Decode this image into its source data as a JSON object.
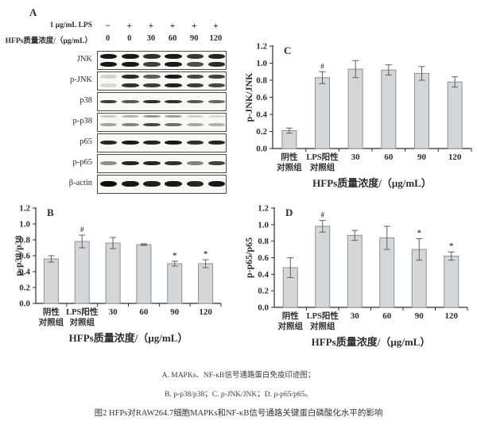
{
  "colors": {
    "bar_fill": "#d4d6d7",
    "bar_stroke": "#8f9294",
    "error_bar": "#5d6062",
    "axis": "#2e2e2e",
    "text": "#2e2e2e",
    "background": "#ffffff"
  },
  "panel_a": {
    "label": "A",
    "header_rows": [
      {
        "label": "1 μg/mL LPS",
        "values": [
          "−",
          "+",
          "+",
          "+",
          "+",
          "+"
        ]
      },
      {
        "label": "HFPs质量浓度/（μg/mL）",
        "values": [
          "0",
          "0",
          "30",
          "60",
          "90",
          "120"
        ]
      }
    ],
    "blot_rows": [
      {
        "label": "JNK",
        "bands": [
          {
            "y": 0.14,
            "h": 6,
            "alpha": [
              0.95,
              0.95,
              0.85,
              0.95,
              0.82,
              0.9
            ]
          },
          {
            "y": 0.56,
            "h": 6,
            "alpha": [
              0.95,
              0.95,
              0.78,
              0.95,
              0.72,
              0.88
            ]
          }
        ]
      },
      {
        "label": "p-JNK",
        "bands": [
          {
            "y": 0.14,
            "h": 5,
            "alpha": [
              0.16,
              0.88,
              0.66,
              0.95,
              0.76,
              0.78
            ]
          },
          {
            "y": 0.58,
            "h": 5,
            "alpha": [
              0.12,
              0.84,
              0.8,
              0.92,
              0.8,
              0.74
            ]
          }
        ]
      },
      {
        "label": "p38",
        "bands": [
          {
            "y": 0.38,
            "h": 4,
            "alpha": [
              0.8,
              0.68,
              0.85,
              0.85,
              0.68,
              0.62
            ]
          }
        ]
      },
      {
        "label": "p-p38",
        "bands": [
          {
            "y": 0.1,
            "h": 3,
            "alpha": [
              0.2,
              0.3,
              0.42,
              0.38,
              0.18,
              0.14
            ]
          },
          {
            "y": 0.48,
            "h": 4,
            "alpha": [
              0.35,
              0.5,
              0.75,
              0.58,
              0.34,
              0.3
            ]
          }
        ]
      },
      {
        "label": "p65",
        "bands": [
          {
            "y": 0.34,
            "h": 5,
            "alpha": [
              0.9,
              0.95,
              0.9,
              0.95,
              0.85,
              0.9
            ]
          }
        ]
      },
      {
        "label": "p-p65",
        "bands": [
          {
            "y": 0.34,
            "h": 5,
            "alpha": [
              0.45,
              0.9,
              0.9,
              0.85,
              0.5,
              0.78
            ]
          }
        ]
      },
      {
        "label": "β-actin",
        "bands": [
          {
            "y": 0.28,
            "h": 7,
            "alpha": [
              1,
              0.95,
              0.92,
              0.95,
              0.9,
              0.95
            ]
          }
        ]
      }
    ]
  },
  "chart_data": [
    {
      "type": "bar",
      "panel": "B",
      "title": "",
      "ylabel": "p-p38/p38",
      "xlabel": "HFPs质量浓度/（μg/mL）",
      "ylim": [
        0,
        1.2
      ],
      "ytick_step": 0.2,
      "grid": false,
      "legend": "none",
      "categories": [
        "阴性\n对照组",
        "LPS阳性\n对照组",
        "30",
        "60",
        "90",
        "120"
      ],
      "values": [
        0.56,
        0.78,
        0.76,
        0.74,
        0.5,
        0.5
      ],
      "errors": [
        0.04,
        0.08,
        0.07,
        0.01,
        0.03,
        0.05
      ],
      "sig": [
        "",
        "#",
        "",
        "",
        "*",
        "*"
      ]
    },
    {
      "type": "bar",
      "panel": "C",
      "title": "",
      "ylabel": "p-JNK/JNK",
      "xlabel": "HFPs质量浓度/（μg/mL）",
      "ylim": [
        0,
        1.2
      ],
      "ytick_step": 0.2,
      "grid": false,
      "legend": "none",
      "categories": [
        "阴性\n对照组",
        "LPS阳性\n对照组",
        "30",
        "60",
        "90",
        "120"
      ],
      "values": [
        0.21,
        0.83,
        0.93,
        0.92,
        0.88,
        0.78
      ],
      "errors": [
        0.03,
        0.07,
        0.1,
        0.06,
        0.08,
        0.06
      ],
      "sig": [
        "",
        "#",
        "",
        "",
        "",
        ""
      ]
    },
    {
      "type": "bar",
      "panel": "D",
      "title": "",
      "ylabel": "p-p65/p65",
      "xlabel": "HFPs质量浓度/（μg/mL）",
      "ylim": [
        0,
        1.2
      ],
      "ytick_step": 0.2,
      "grid": false,
      "legend": "none",
      "categories": [
        "阴性\n对照组",
        "LPS阳性\n对照组",
        "30",
        "60",
        "90",
        "120"
      ],
      "values": [
        0.48,
        0.98,
        0.87,
        0.84,
        0.7,
        0.62
      ],
      "errors": [
        0.12,
        0.07,
        0.06,
        0.14,
        0.13,
        0.05
      ],
      "sig": [
        "",
        "#",
        "",
        "",
        "*",
        "*"
      ]
    }
  ],
  "caption": {
    "lines": [
      "A. MAPKs、NF-κB信号通路蛋白免疫印迹图；",
      "B. p-p38/p38；C. p-JNK/JNK；D. p-p65/p65。",
      "图2 HFPs对RAW264.7细胞MAPKs和NF-κB信号通路关键蛋白磷酸化水平的影响"
    ]
  }
}
